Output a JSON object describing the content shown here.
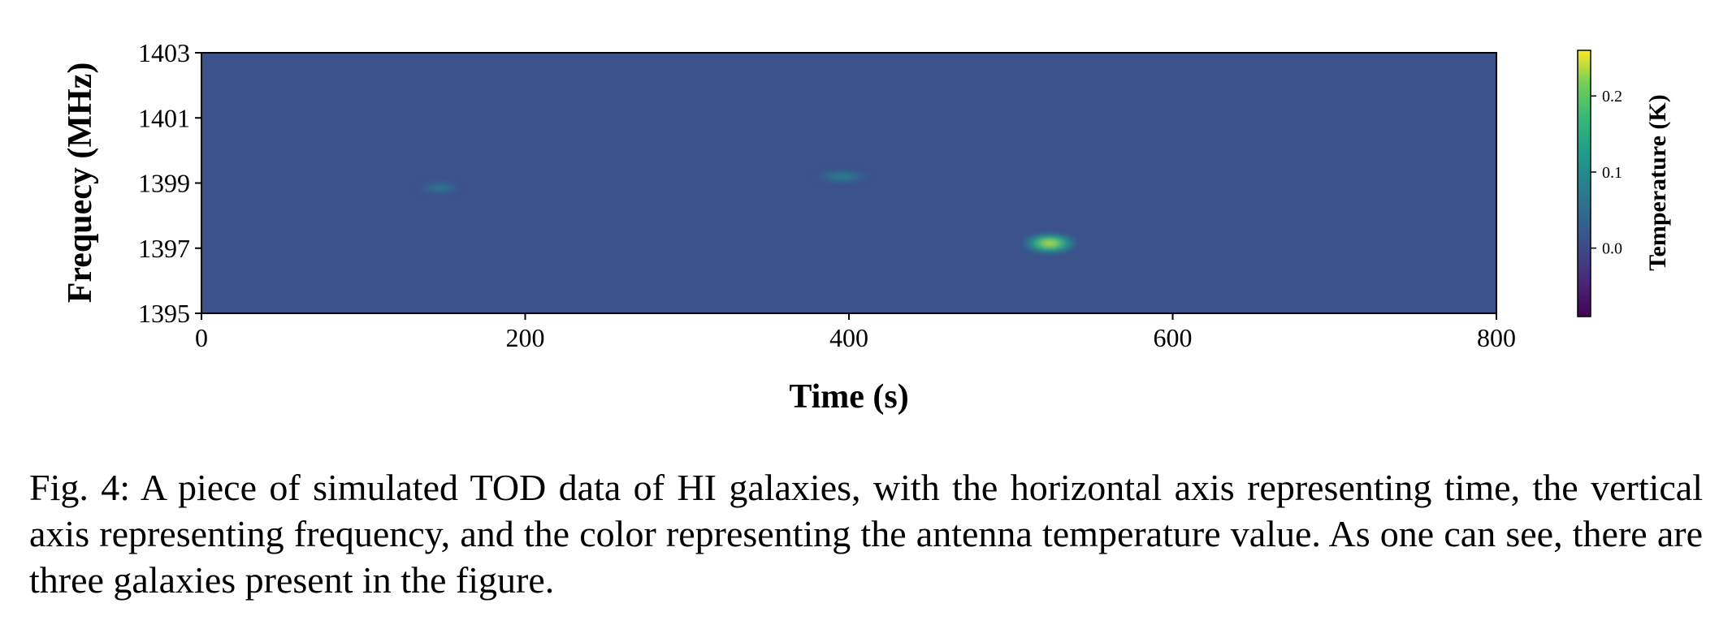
{
  "chart_data": {
    "type": "heatmap",
    "xlabel": "Time (s)",
    "ylabel": "Frequecy (MHz)",
    "xlim": [
      0,
      800
    ],
    "ylim": [
      1395,
      1403
    ],
    "x_ticks": [
      0,
      200,
      400,
      600,
      800
    ],
    "y_ticks": [
      1395,
      1397,
      1399,
      1401,
      1403
    ],
    "colormap": "viridis",
    "background_value": 0.0,
    "colorbar": {
      "label": "Temperature (K)",
      "range": [
        -0.09,
        0.26
      ],
      "ticks": [
        "0.0",
        "0.1",
        "0.2"
      ]
    },
    "galaxies": [
      {
        "time": 147,
        "frequency": 1398.85,
        "width_s": 22,
        "peak_K": 0.07
      },
      {
        "time": 396,
        "frequency": 1399.2,
        "width_s": 30,
        "peak_K": 0.08
      },
      {
        "time": 524,
        "frequency": 1397.15,
        "width_s": 30,
        "peak_K": 0.24
      }
    ]
  },
  "caption": "Fig. 4: A piece of simulated TOD data of HI galaxies, with the horizontal axis representing time, the vertical axis representing frequency, and the color representing the antenna temperature value. As one can see, there are three galaxies present in the figure."
}
